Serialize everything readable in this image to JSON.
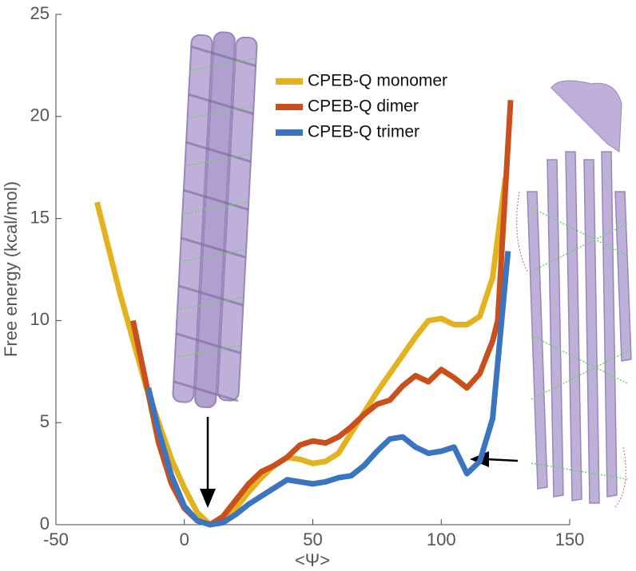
{
  "chart_data": {
    "type": "line",
    "xlabel": "<Ψ>",
    "ylabel": "Free energy (kcal/mol)",
    "xlim": [
      -50,
      150
    ],
    "xticks": [
      -50,
      0,
      50,
      100,
      150
    ],
    "ylim": [
      0,
      25
    ],
    "yticks": [
      0,
      5,
      10,
      15,
      20,
      25
    ],
    "legend": "upper center",
    "series": [
      {
        "name": "CPEB-Q monomer",
        "color": "#e3b21f",
        "x": [
          -34,
          -25,
          -15,
          -5,
          0,
          5,
          10,
          15,
          20,
          25,
          30,
          35,
          40,
          45,
          50,
          55,
          60,
          65,
          70,
          75,
          80,
          85,
          90,
          95,
          100,
          105,
          110,
          115,
          120,
          125
        ],
        "values": [
          15.8,
          11.3,
          6.8,
          3.2,
          1.8,
          0.6,
          0.0,
          0.3,
          0.8,
          1.6,
          2.3,
          2.9,
          3.3,
          3.2,
          3.0,
          3.1,
          3.5,
          4.5,
          5.5,
          6.5,
          7.4,
          8.3,
          9.2,
          10.0,
          10.1,
          9.8,
          9.8,
          10.2,
          12.1,
          17.0
        ]
      },
      {
        "name": "CPEB-Q dimer",
        "color": "#c9501c",
        "x": [
          -20,
          -15,
          -10,
          -5,
          0,
          5,
          10,
          15,
          20,
          25,
          30,
          35,
          40,
          45,
          50,
          55,
          60,
          65,
          70,
          75,
          80,
          85,
          90,
          95,
          100,
          105,
          110,
          115,
          120,
          122,
          127
        ],
        "values": [
          10.0,
          7.0,
          4.0,
          2.0,
          0.8,
          0.2,
          0.0,
          0.4,
          1.2,
          2.0,
          2.6,
          2.9,
          3.3,
          3.9,
          4.1,
          4.0,
          4.3,
          4.8,
          5.4,
          5.9,
          6.1,
          6.8,
          7.3,
          7.0,
          7.6,
          7.2,
          6.7,
          7.4,
          9.0,
          10.0,
          20.8
        ]
      },
      {
        "name": "CPEB-Q trimer",
        "color": "#3b75bf",
        "x": [
          -14,
          -10,
          -5,
          0,
          5,
          10,
          15,
          20,
          25,
          30,
          35,
          40,
          45,
          50,
          55,
          60,
          65,
          70,
          75,
          80,
          85,
          90,
          95,
          100,
          105,
          110,
          115,
          120,
          126
        ],
        "values": [
          6.7,
          4.6,
          2.4,
          0.9,
          0.2,
          0.0,
          0.1,
          0.5,
          1.0,
          1.4,
          1.8,
          2.2,
          2.1,
          2.0,
          2.1,
          2.3,
          2.4,
          2.9,
          3.6,
          4.2,
          4.3,
          3.8,
          3.5,
          3.6,
          3.8,
          2.5,
          3.1,
          5.2,
          13.4
        ]
      }
    ]
  }
}
